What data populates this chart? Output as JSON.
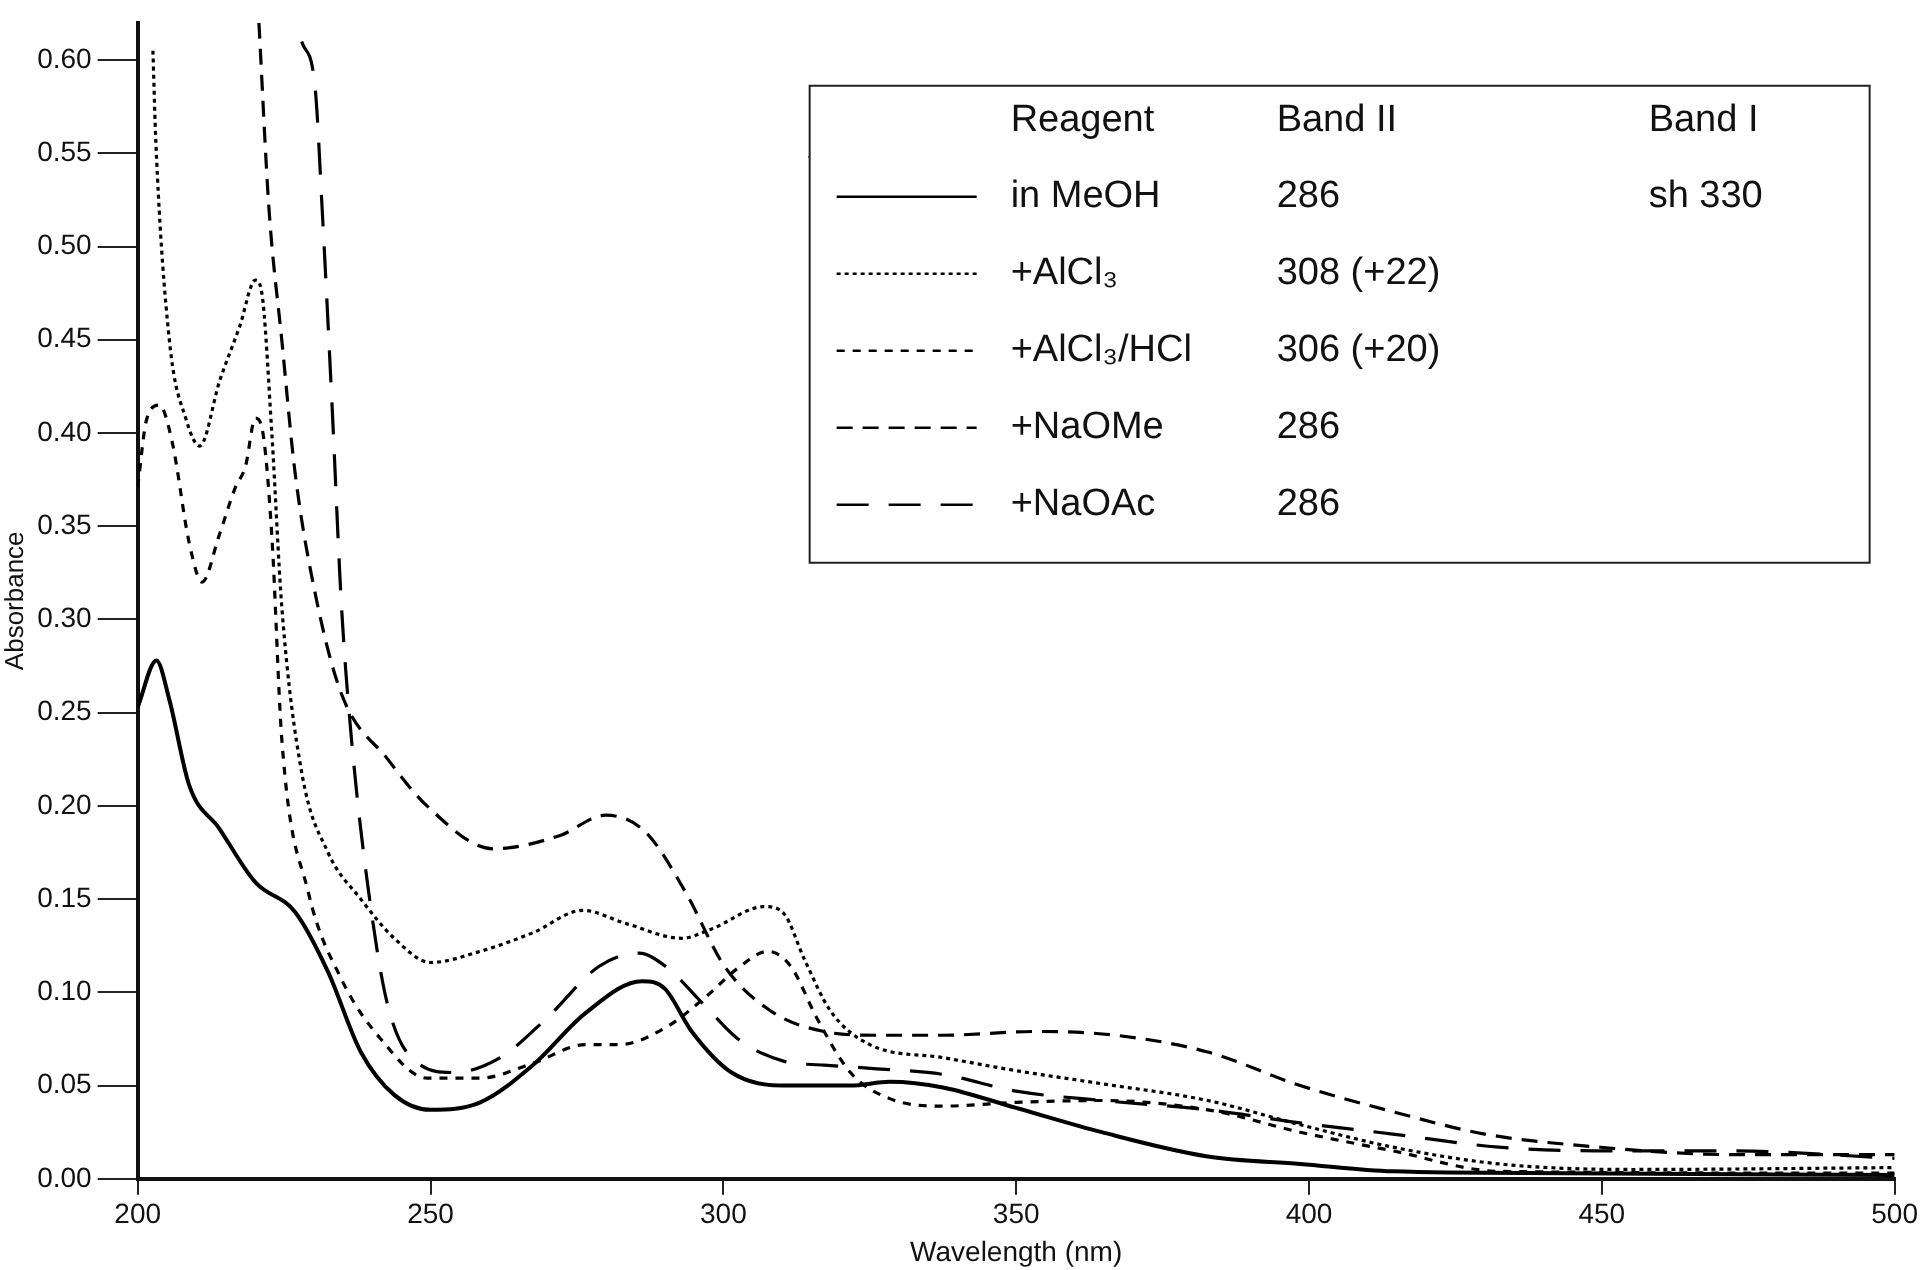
{
  "chart_data": {
    "type": "line",
    "xlabel": "Wavelength (nm)",
    "ylabel": "Absorbance",
    "legend_title": "Reagent",
    "legend": "top right",
    "marker": "none",
    "grid": false,
    "annotations": [
      "Band II",
      "Band I",
      "286",
      "sh 330",
      "308 (+22)",
      "306 (+20)",
      "286",
      "286"
    ],
    "xlim": [
      200,
      500
    ],
    "xticks": [
      200,
      250,
      300,
      350,
      400,
      450,
      500
    ],
    "ylim": [
      0,
      0.62
    ],
    "yticks": [
      {
        "value": 0,
        "label": "0.00"
      },
      {
        "value": 0.05,
        "label": "0.05"
      },
      {
        "value": 0.1,
        "label": "0.10"
      },
      {
        "value": 0.15,
        "label": "0.15"
      },
      {
        "value": 0.2,
        "label": "0.20"
      },
      {
        "value": 0.25,
        "label": "0.25"
      },
      {
        "value": 0.3,
        "label": "0.30"
      },
      {
        "value": 0.35,
        "label": "0.35"
      },
      {
        "value": 0.4,
        "label": "0.40"
      },
      {
        "value": 0.45,
        "label": "0.45"
      },
      {
        "value": 0.5,
        "label": "0.50"
      },
      {
        "value": 0.55,
        "label": "0.55"
      },
      {
        "value": 0.6,
        "label": "0.60"
      }
    ],
    "series": [
      {
        "name": "in MeOH",
        "color": "#000000",
        "line_style": "solid",
        "x": [
          200,
          203.2,
          205.4,
          208.8,
          213.9,
          220.1,
          226.9,
          232.5,
          238.1,
          243.8,
          250,
          258.5,
          267.5,
          276.5,
          286.1,
          290,
          294.6,
          301.4,
          310.4,
          321.7,
          328.4,
          337.5,
          350,
          364.6,
          382.7,
          398.5,
          414.3,
          443.6,
          500
        ],
        "values": [
          0.253,
          0.278,
          0.257,
          0.211,
          0.188,
          0.159,
          0.143,
          0.111,
          0.068,
          0.045,
          0.037,
          0.041,
          0.061,
          0.089,
          0.106,
          0.102,
          0.079,
          0.057,
          0.05,
          0.05,
          0.052,
          0.049,
          0.038,
          0.025,
          0.012,
          0.008,
          0.004,
          0.003,
          0.002
        ]
      },
      {
        "name": "+AlCl₃",
        "color": "#000000",
        "line_style": "dotted",
        "x": [
          202.6,
          203.1,
          205.4,
          208.3,
          210.6,
          214,
          217.4,
          220.1,
          221.2,
          222.9,
          224.6,
          228,
          232.5,
          238.1,
          243.8,
          250,
          258.5,
          267.5,
          276,
          283.3,
          292.9,
          298,
          307,
          310.4,
          313.8,
          318.3,
          325,
          337.5,
          350,
          364.6,
          382.7,
          398.5,
          414.3,
          432.4,
          455,
          500
        ],
        "values": [
          0.605,
          0.556,
          0.45,
          0.407,
          0.393,
          0.428,
          0.457,
          0.482,
          0.475,
          0.4,
          0.307,
          0.218,
          0.175,
          0.15,
          0.129,
          0.116,
          0.122,
          0.132,
          0.144,
          0.137,
          0.129,
          0.134,
          0.146,
          0.142,
          0.118,
          0.09,
          0.072,
          0.065,
          0.058,
          0.051,
          0.042,
          0.029,
          0.017,
          0.008,
          0.005,
          0.006
        ]
      },
      {
        "name": "+AlCl₃/HCl",
        "color": "#000000",
        "line_style": "dotted",
        "x": [
          200,
          201.5,
          203.7,
          205.9,
          208.8,
          211,
          213.9,
          216.7,
          218.4,
          220.1,
          221.2,
          222.9,
          224.6,
          229.1,
          234.8,
          241.5,
          249.4,
          258.5,
          267.5,
          276.5,
          282.2,
          290.1,
          296.8,
          302.5,
          307.6,
          311.5,
          316,
          321.7,
          328.4,
          337.5,
          350,
          364.6,
          382.7,
          398.5,
          414.3,
          432.4,
          500
        ],
        "values": [
          0.371,
          0.407,
          0.415,
          0.395,
          0.341,
          0.32,
          0.345,
          0.371,
          0.382,
          0.408,
          0.403,
          0.345,
          0.236,
          0.154,
          0.107,
          0.075,
          0.054,
          0.054,
          0.062,
          0.072,
          0.072,
          0.081,
          0.097,
          0.113,
          0.122,
          0.114,
          0.086,
          0.057,
          0.043,
          0.039,
          0.041,
          0.042,
          0.037,
          0.025,
          0.015,
          0.004,
          0.003
        ]
      },
      {
        "name": "+NaOMe",
        "color": "#000000",
        "line_style": "dashed",
        "x": [
          220.7,
          222.4,
          224.6,
          226.9,
          230.3,
          234.8,
          242.7,
          249.4,
          260.7,
          272,
          279.9,
          286.7,
          293.5,
          300.2,
          308.1,
          317.2,
          326.2,
          337.5,
          353.4,
          366.9,
          382.7,
          398.5,
          414.3,
          430,
          449.5,
          472,
          500
        ],
        "values": [
          0.62,
          0.521,
          0.45,
          0.378,
          0.314,
          0.26,
          0.225,
          0.2,
          0.177,
          0.184,
          0.195,
          0.186,
          0.154,
          0.114,
          0.09,
          0.079,
          0.077,
          0.077,
          0.079,
          0.077,
          0.068,
          0.05,
          0.036,
          0.024,
          0.017,
          0.013,
          0.013
        ]
      },
      {
        "name": "+NaOAc",
        "color": "#000000",
        "line_style": "dashed",
        "x": [
          228,
          230.3,
          231.5,
          233.2,
          234.8,
          236.5,
          239.3,
          242.7,
          248.3,
          253.9,
          261.9,
          269.8,
          278.8,
          285.6,
          290.1,
          296.8,
          302.5,
          310.4,
          317.2,
          326.2,
          337.5,
          350,
          364.6,
          382.7,
          398.5,
          414.3,
          432.4,
          449.5,
          472,
          500
        ],
        "values": [
          0.61,
          0.585,
          0.52,
          0.414,
          0.307,
          0.236,
          0.157,
          0.093,
          0.061,
          0.057,
          0.065,
          0.086,
          0.114,
          0.121,
          0.114,
          0.093,
          0.075,
          0.063,
          0.061,
          0.059,
          0.056,
          0.047,
          0.042,
          0.037,
          0.03,
          0.024,
          0.017,
          0.015,
          0.015,
          0.011
        ]
      }
    ]
  }
}
